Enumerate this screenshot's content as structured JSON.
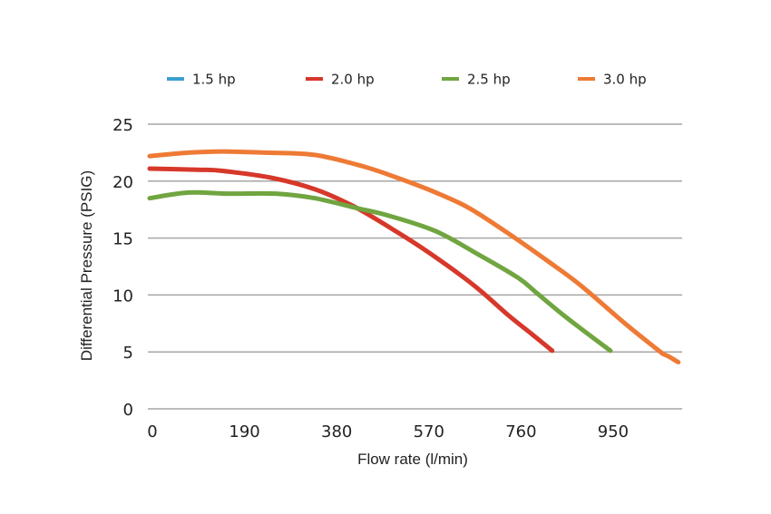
{
  "chart_data": {
    "type": "line",
    "title": "",
    "xlabel": "Flow rate (l/min)",
    "ylabel": "Differential Pressure (PSIG)",
    "xlim": [
      0,
      1130
    ],
    "ylim": [
      0,
      25
    ],
    "x_ticks": [
      "0",
      "190",
      "380",
      "570",
      "760",
      "950"
    ],
    "y_ticks": [
      "0",
      "5",
      "10",
      "15",
      "20",
      "25"
    ],
    "grid": true,
    "legend_position": "top",
    "series": [
      {
        "name": "1.5 hp",
        "color": "#3aa0cf",
        "x": [],
        "y": []
      },
      {
        "name": "2.0 hp",
        "color": "#d6382a",
        "x": [
          0,
          100,
          150,
          250,
          340,
          420,
          500,
          580,
          670,
          740,
          790,
          830
        ],
        "y": [
          21.1,
          21.0,
          20.9,
          20.3,
          19.3,
          17.8,
          15.8,
          13.6,
          10.8,
          8.2,
          6.5,
          5.1
        ]
      },
      {
        "name": "2.5 hp",
        "color": "#70a540",
        "x": [
          0,
          80,
          160,
          260,
          340,
          430,
          490,
          590,
          680,
          760,
          800,
          860,
          950
        ],
        "y": [
          18.5,
          19.0,
          18.9,
          18.9,
          18.5,
          17.6,
          17.0,
          15.6,
          13.5,
          11.5,
          10.1,
          8.0,
          5.1
        ]
      },
      {
        "name": "3.0 hp",
        "color": "#ee7a35",
        "x": [
          0,
          80,
          150,
          240,
          340,
          440,
          510,
          590,
          660,
          750,
          820,
          890,
          980,
          1050,
          1060,
          1070,
          1090
        ],
        "y": [
          22.2,
          22.5,
          22.6,
          22.5,
          22.3,
          21.3,
          20.3,
          19.0,
          17.6,
          15.1,
          13.0,
          10.8,
          7.5,
          5.1,
          4.8,
          4.6,
          4.1
        ]
      }
    ]
  }
}
